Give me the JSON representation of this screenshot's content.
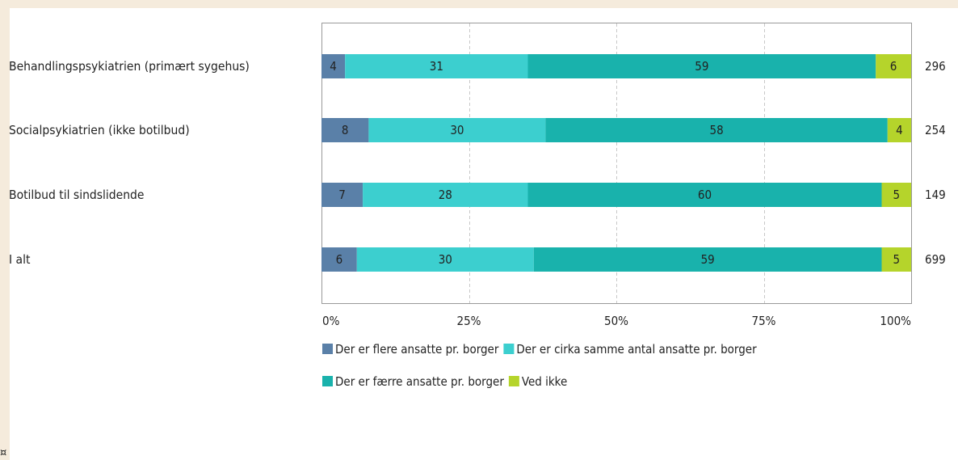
{
  "chart_data": {
    "type": "bar",
    "orientation": "horizontal",
    "stacked": "percent",
    "title": "",
    "categories": [
      "Behandlingspsykiatrien (primært sygehus)",
      "Socialpsykiatrien (ikke botilbud)",
      "Botilbud til sindslidende",
      "I alt"
    ],
    "series": [
      {
        "name": "Der er flere ansatte pr. borger",
        "color": "#5a80a8",
        "values": [
          4,
          8,
          7,
          6
        ]
      },
      {
        "name": "Der er cirka samme antal ansatte pr. borger",
        "color": "#3ccfcf",
        "values": [
          31,
          30,
          28,
          30
        ]
      },
      {
        "name": "Der er færre ansatte pr. borger",
        "color": "#19b2ac",
        "values": [
          59,
          58,
          60,
          59
        ]
      },
      {
        "name": "Ved ikke",
        "color": "#b5d42b",
        "values": [
          6,
          4,
          5,
          5
        ]
      }
    ],
    "totals": [
      "296",
      "254",
      "149",
      "699"
    ],
    "x_ticks": [
      "0%",
      "25%",
      "50%",
      "75%",
      "100%"
    ],
    "xlim": [
      0,
      100
    ],
    "grid": "vertical dashed",
    "legend_position": "bottom"
  },
  "footnote": "¤"
}
